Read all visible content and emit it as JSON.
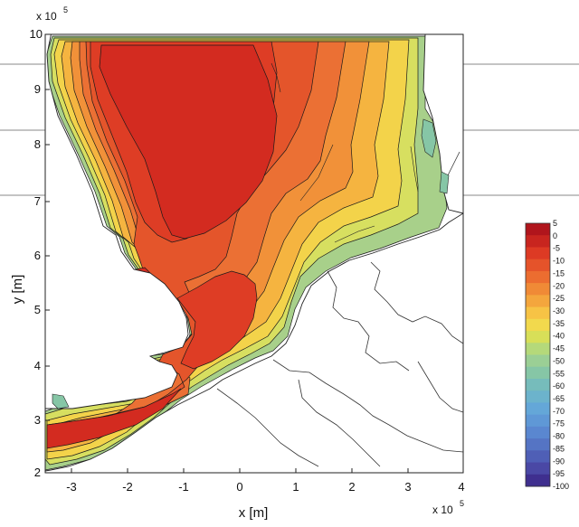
{
  "map": {
    "x_axis": {
      "label": "x [m]",
      "ticks": [
        "-3",
        "-2",
        "-1",
        "0",
        "1",
        "2",
        "3",
        "4"
      ],
      "multiplier": "x 10",
      "exponent": "5"
    },
    "y_axis": {
      "label": "y [m]",
      "ticks": [
        "2",
        "3",
        "4",
        "5",
        "6",
        "7",
        "8",
        "9",
        "10"
      ],
      "multiplier": "x 10",
      "exponent": "5"
    }
  },
  "colorbar": {
    "labels": [
      "5",
      "0",
      "-5",
      "-10",
      "-15",
      "-20",
      "-25",
      "-30",
      "-35",
      "-40",
      "-45",
      "-50",
      "-55",
      "-60",
      "-65",
      "-70",
      "-75",
      "-80",
      "-85",
      "-90",
      "-95",
      "-100"
    ],
    "colors": [
      "#b0151c",
      "#c8251f",
      "#dd3a24",
      "#e5532a",
      "#ec6d30",
      "#f08a36",
      "#f4a63d",
      "#f7c345",
      "#f2d94d",
      "#d8df58",
      "#b5d97a",
      "#9bcf95",
      "#86c6a6",
      "#76bcbb",
      "#6cb3cc",
      "#64a7d8",
      "#5f98d6",
      "#5a87d0",
      "#5574c4",
      "#4f5fb6",
      "#4a48a5",
      "#3f2f8f"
    ]
  }
}
